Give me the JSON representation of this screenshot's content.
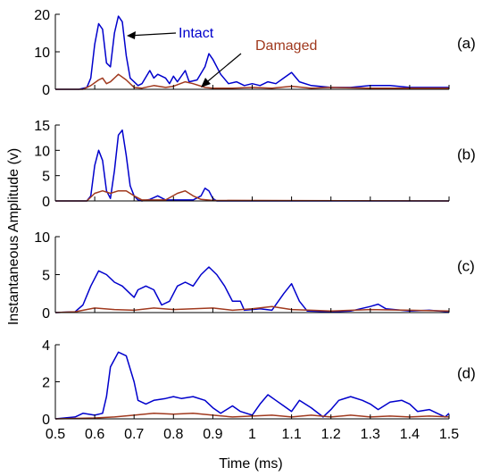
{
  "figure": {
    "ylabel": "Instantaneous Amplitude (v)",
    "xlabel": "Time (ms)"
  },
  "colors": {
    "intact": "#0000cc",
    "damaged": "#a0391e",
    "axis": "#000000"
  },
  "chart_data": [
    {
      "type": "line",
      "panel_label": "(a)",
      "xlim": [
        0.5,
        1.5
      ],
      "ylim": [
        0,
        20
      ],
      "yticks": [
        0,
        10,
        20
      ],
      "annotations": [
        "Intact",
        "Damaged"
      ],
      "series": [
        {
          "name": "Intact",
          "points": [
            [
              0.5,
              0
            ],
            [
              0.56,
              0
            ],
            [
              0.58,
              0.5
            ],
            [
              0.59,
              3
            ],
            [
              0.6,
              12
            ],
            [
              0.61,
              17.5
            ],
            [
              0.62,
              16
            ],
            [
              0.63,
              7
            ],
            [
              0.64,
              6
            ],
            [
              0.65,
              15
            ],
            [
              0.66,
              19.5
            ],
            [
              0.67,
              18
            ],
            [
              0.68,
              9
            ],
            [
              0.69,
              3
            ],
            [
              0.7,
              2
            ],
            [
              0.71,
              1
            ],
            [
              0.72,
              1.5
            ],
            [
              0.74,
              5
            ],
            [
              0.75,
              3
            ],
            [
              0.76,
              4
            ],
            [
              0.78,
              3
            ],
            [
              0.79,
              1.5
            ],
            [
              0.8,
              3.5
            ],
            [
              0.81,
              2
            ],
            [
              0.83,
              5
            ],
            [
              0.84,
              2
            ],
            [
              0.86,
              2.5
            ],
            [
              0.88,
              6
            ],
            [
              0.89,
              9.5
            ],
            [
              0.9,
              8
            ],
            [
              0.92,
              4
            ],
            [
              0.94,
              1.5
            ],
            [
              0.96,
              2
            ],
            [
              0.98,
              1
            ],
            [
              1.0,
              1.5
            ],
            [
              1.02,
              1
            ],
            [
              1.04,
              2
            ],
            [
              1.06,
              1.5
            ],
            [
              1.08,
              3
            ],
            [
              1.1,
              4.5
            ],
            [
              1.12,
              2
            ],
            [
              1.15,
              1
            ],
            [
              1.2,
              0.5
            ],
            [
              1.25,
              0.5
            ],
            [
              1.3,
              1
            ],
            [
              1.35,
              1
            ],
            [
              1.4,
              0.5
            ],
            [
              1.45,
              0.5
            ],
            [
              1.5,
              0.5
            ]
          ]
        },
        {
          "name": "Damaged",
          "points": [
            [
              0.5,
              0
            ],
            [
              0.57,
              0
            ],
            [
              0.59,
              1
            ],
            [
              0.61,
              2.5
            ],
            [
              0.62,
              3
            ],
            [
              0.63,
              1.5
            ],
            [
              0.64,
              2
            ],
            [
              0.66,
              4
            ],
            [
              0.68,
              2.5
            ],
            [
              0.7,
              0.5
            ],
            [
              0.72,
              0.3
            ],
            [
              0.75,
              1
            ],
            [
              0.78,
              0.5
            ],
            [
              0.8,
              0.8
            ],
            [
              0.83,
              2
            ],
            [
              0.85,
              1.5
            ],
            [
              0.88,
              0.5
            ],
            [
              0.9,
              0.3
            ],
            [
              0.95,
              0.3
            ],
            [
              1.0,
              0.5
            ],
            [
              1.05,
              0.3
            ],
            [
              1.1,
              0.8
            ],
            [
              1.15,
              0.3
            ],
            [
              1.2,
              0.5
            ],
            [
              1.3,
              0.3
            ],
            [
              1.4,
              0.3
            ],
            [
              1.5,
              0.3
            ]
          ]
        }
      ]
    },
    {
      "type": "line",
      "panel_label": "(b)",
      "xlim": [
        0.5,
        1.5
      ],
      "ylim": [
        0,
        15
      ],
      "yticks": [
        0,
        5,
        10,
        15
      ],
      "series": [
        {
          "name": "Intact",
          "points": [
            [
              0.5,
              0
            ],
            [
              0.58,
              0
            ],
            [
              0.59,
              1
            ],
            [
              0.6,
              7
            ],
            [
              0.61,
              10
            ],
            [
              0.62,
              8
            ],
            [
              0.63,
              2
            ],
            [
              0.64,
              0.5
            ],
            [
              0.65,
              6
            ],
            [
              0.66,
              13
            ],
            [
              0.67,
              14
            ],
            [
              0.68,
              9
            ],
            [
              0.69,
              3
            ],
            [
              0.7,
              1
            ],
            [
              0.71,
              0.2
            ],
            [
              0.72,
              0
            ],
            [
              0.74,
              0.3
            ],
            [
              0.76,
              1
            ],
            [
              0.78,
              0.2
            ],
            [
              0.85,
              0.2
            ],
            [
              0.87,
              1
            ],
            [
              0.88,
              2.5
            ],
            [
              0.89,
              2
            ],
            [
              0.9,
              0.5
            ],
            [
              0.91,
              0
            ],
            [
              1.5,
              0
            ]
          ]
        },
        {
          "name": "Damaged",
          "points": [
            [
              0.5,
              0
            ],
            [
              0.58,
              0
            ],
            [
              0.6,
              1.5
            ],
            [
              0.62,
              2
            ],
            [
              0.64,
              1.5
            ],
            [
              0.66,
              2
            ],
            [
              0.68,
              2
            ],
            [
              0.7,
              1
            ],
            [
              0.72,
              0.2
            ],
            [
              0.78,
              0.2
            ],
            [
              0.81,
              1.5
            ],
            [
              0.83,
              2
            ],
            [
              0.85,
              1
            ],
            [
              0.87,
              0.3
            ],
            [
              0.9,
              0.1
            ],
            [
              1.5,
              0
            ]
          ]
        }
      ]
    },
    {
      "type": "line",
      "panel_label": "(c)",
      "xlim": [
        0.5,
        1.5
      ],
      "ylim": [
        0,
        10
      ],
      "yticks": [
        0,
        5,
        10
      ],
      "series": [
        {
          "name": "Intact",
          "points": [
            [
              0.5,
              0
            ],
            [
              0.55,
              0.1
            ],
            [
              0.57,
              1
            ],
            [
              0.59,
              3.5
            ],
            [
              0.61,
              5.5
            ],
            [
              0.63,
              5
            ],
            [
              0.65,
              4
            ],
            [
              0.67,
              3.5
            ],
            [
              0.69,
              2.5
            ],
            [
              0.7,
              2
            ],
            [
              0.71,
              3
            ],
            [
              0.73,
              3.5
            ],
            [
              0.75,
              3
            ],
            [
              0.77,
              1
            ],
            [
              0.79,
              1.5
            ],
            [
              0.81,
              3.5
            ],
            [
              0.83,
              4
            ],
            [
              0.85,
              3.5
            ],
            [
              0.87,
              5
            ],
            [
              0.89,
              6
            ],
            [
              0.91,
              5
            ],
            [
              0.93,
              3.5
            ],
            [
              0.95,
              1.5
            ],
            [
              0.97,
              1.5
            ],
            [
              0.98,
              0.3
            ],
            [
              1.0,
              0.4
            ],
            [
              1.02,
              0.5
            ],
            [
              1.05,
              0.3
            ],
            [
              1.08,
              2.5
            ],
            [
              1.1,
              3.8
            ],
            [
              1.12,
              1.5
            ],
            [
              1.14,
              0.2
            ],
            [
              1.2,
              0.1
            ],
            [
              1.25,
              0.2
            ],
            [
              1.3,
              0.8
            ],
            [
              1.32,
              1.1
            ],
            [
              1.34,
              0.5
            ],
            [
              1.4,
              0.2
            ],
            [
              1.45,
              0.3
            ],
            [
              1.5,
              0.1
            ]
          ]
        },
        {
          "name": "Damaged",
          "points": [
            [
              0.5,
              0
            ],
            [
              0.55,
              0.1
            ],
            [
              0.6,
              0.6
            ],
            [
              0.65,
              0.4
            ],
            [
              0.7,
              0.3
            ],
            [
              0.75,
              0.6
            ],
            [
              0.8,
              0.4
            ],
            [
              0.85,
              0.5
            ],
            [
              0.9,
              0.6
            ],
            [
              0.95,
              0.3
            ],
            [
              1.0,
              0.5
            ],
            [
              1.05,
              0.8
            ],
            [
              1.1,
              0.4
            ],
            [
              1.15,
              0.3
            ],
            [
              1.2,
              0.2
            ],
            [
              1.3,
              0.4
            ],
            [
              1.4,
              0.3
            ],
            [
              1.5,
              0.2
            ]
          ]
        }
      ]
    },
    {
      "type": "line",
      "panel_label": "(d)",
      "xlim": [
        0.5,
        1.5
      ],
      "ylim": [
        0,
        4
      ],
      "yticks": [
        0,
        2,
        4
      ],
      "xticks": [
        0.5,
        0.6,
        0.7,
        0.8,
        0.9,
        1,
        1.1,
        1.2,
        1.3,
        1.4,
        1.5
      ],
      "series": [
        {
          "name": "Intact",
          "points": [
            [
              0.5,
              0
            ],
            [
              0.55,
              0.1
            ],
            [
              0.57,
              0.3
            ],
            [
              0.6,
              0.2
            ],
            [
              0.62,
              0.3
            ],
            [
              0.63,
              1.2
            ],
            [
              0.64,
              2.8
            ],
            [
              0.66,
              3.6
            ],
            [
              0.68,
              3.4
            ],
            [
              0.7,
              2
            ],
            [
              0.71,
              1
            ],
            [
              0.73,
              0.8
            ],
            [
              0.75,
              1
            ],
            [
              0.78,
              1.1
            ],
            [
              0.8,
              1.2
            ],
            [
              0.82,
              1.1
            ],
            [
              0.85,
              1.2
            ],
            [
              0.88,
              1
            ],
            [
              0.9,
              0.6
            ],
            [
              0.92,
              0.3
            ],
            [
              0.95,
              0.7
            ],
            [
              0.97,
              0.4
            ],
            [
              1.0,
              0.2
            ],
            [
              1.02,
              0.8
            ],
            [
              1.04,
              1.3
            ],
            [
              1.06,
              1
            ],
            [
              1.08,
              0.7
            ],
            [
              1.1,
              0.4
            ],
            [
              1.12,
              1
            ],
            [
              1.15,
              0.6
            ],
            [
              1.18,
              0.1
            ],
            [
              1.2,
              0.5
            ],
            [
              1.22,
              1
            ],
            [
              1.25,
              1.2
            ],
            [
              1.28,
              1
            ],
            [
              1.3,
              0.8
            ],
            [
              1.32,
              0.5
            ],
            [
              1.35,
              0.9
            ],
            [
              1.38,
              1
            ],
            [
              1.4,
              0.8
            ],
            [
              1.42,
              0.4
            ],
            [
              1.45,
              0.5
            ],
            [
              1.47,
              0.3
            ],
            [
              1.49,
              0.1
            ],
            [
              1.5,
              0.3
            ]
          ]
        },
        {
          "name": "Damaged",
          "points": [
            [
              0.5,
              0
            ],
            [
              0.6,
              0.05
            ],
            [
              0.65,
              0.1
            ],
            [
              0.7,
              0.2
            ],
            [
              0.75,
              0.3
            ],
            [
              0.8,
              0.25
            ],
            [
              0.85,
              0.3
            ],
            [
              0.9,
              0.2
            ],
            [
              0.95,
              0.1
            ],
            [
              1.0,
              0.15
            ],
            [
              1.05,
              0.2
            ],
            [
              1.1,
              0.1
            ],
            [
              1.15,
              0.2
            ],
            [
              1.2,
              0.1
            ],
            [
              1.25,
              0.2
            ],
            [
              1.3,
              0.1
            ],
            [
              1.35,
              0.15
            ],
            [
              1.4,
              0.1
            ],
            [
              1.45,
              0.15
            ],
            [
              1.5,
              0.1
            ]
          ]
        }
      ]
    }
  ]
}
